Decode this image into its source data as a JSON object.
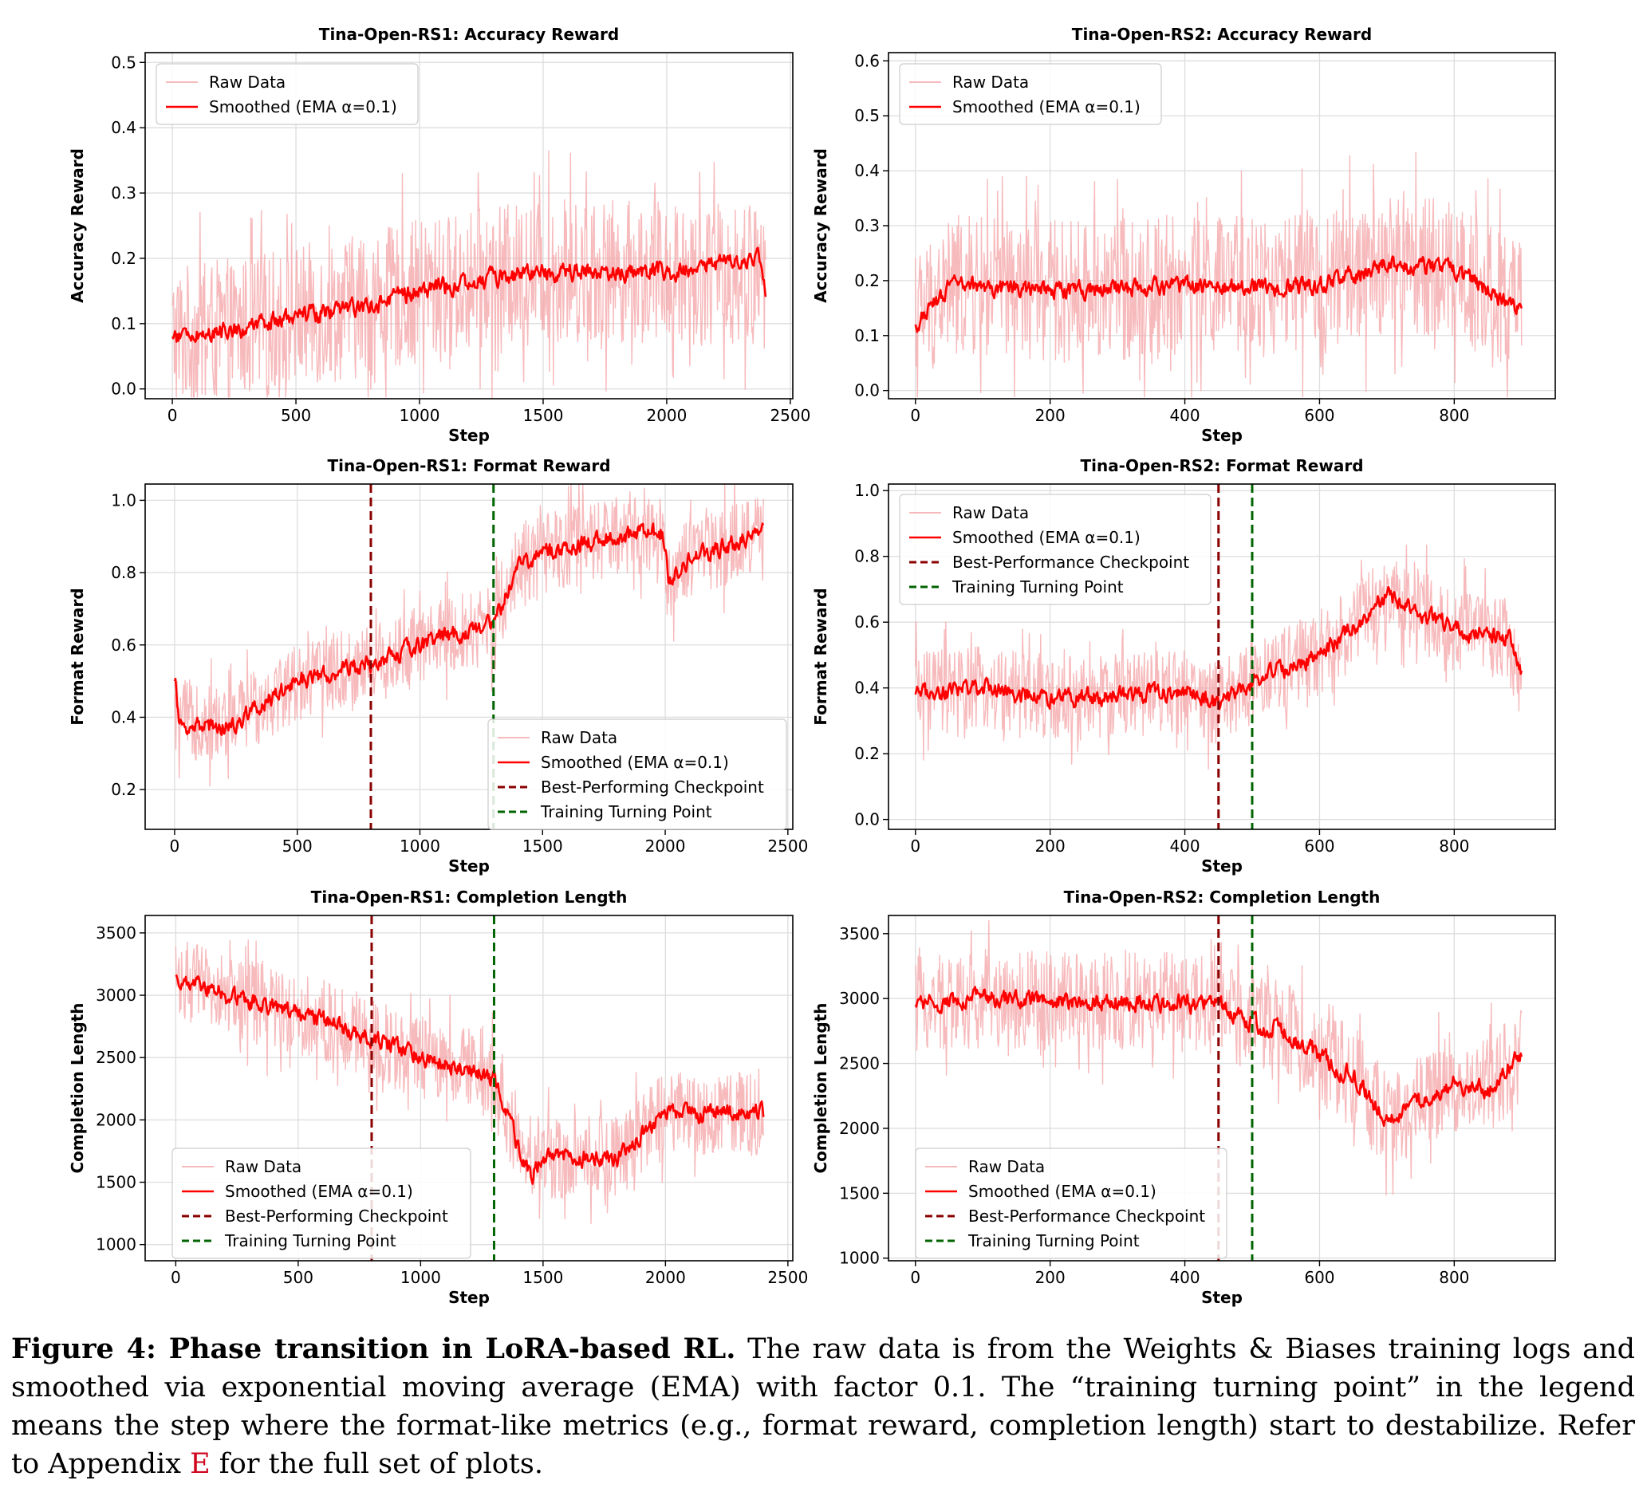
{
  "colors": {
    "raw": "#f4a3a6",
    "smoothed": "#ff0000",
    "best": "#8b0000",
    "turning": "#006400",
    "grid": "#dddddd",
    "ref": "#d0021b"
  },
  "chart_data": [
    {
      "type": "line",
      "title": "Tina-Open-RS1: Accuracy Reward",
      "xlabel": "Step",
      "ylabel": "Accuracy Reward",
      "xlim": [
        -110,
        2510
      ],
      "ylim": [
        -0.015,
        0.515
      ],
      "xticks": [
        0,
        500,
        1000,
        1500,
        2000,
        2500
      ],
      "yticks": [
        0.0,
        0.1,
        0.2,
        0.3,
        0.4,
        0.5
      ],
      "ytick_decimals": 1,
      "grid": true,
      "legend_position": "top-left",
      "legend": [
        "Raw Data",
        "Smoothed (EMA α=0.1)"
      ],
      "series": [
        {
          "name": "Raw Data",
          "role": "raw",
          "x_range": [
            0,
            2400
          ],
          "trend": [
            [
              0,
              0.08
            ],
            [
              250,
              0.09
            ],
            [
              500,
              0.11
            ],
            [
              800,
              0.13
            ],
            [
              1000,
              0.15
            ],
            [
              1300,
              0.17
            ],
            [
              1500,
              0.18
            ],
            [
              2000,
              0.18
            ],
            [
              2400,
              0.17
            ]
          ],
          "amplitude": 0.11
        },
        {
          "name": "Smoothed (EMA α=0.1)",
          "role": "smoothed",
          "x_range": [
            0,
            2400
          ],
          "trend": [
            [
              0,
              0.08
            ],
            [
              250,
              0.09
            ],
            [
              500,
              0.11
            ],
            [
              800,
              0.13
            ],
            [
              1000,
              0.15
            ],
            [
              1300,
              0.17
            ],
            [
              1500,
              0.18
            ],
            [
              2000,
              0.18
            ],
            [
              2380,
              0.2
            ],
            [
              2400,
              0.13
            ]
          ]
        }
      ]
    },
    {
      "type": "line",
      "title": "Tina-Open-RS2: Accuracy Reward",
      "xlabel": "Step",
      "ylabel": "Accuracy Reward",
      "xlim": [
        -40,
        950
      ],
      "ylim": [
        -0.015,
        0.615
      ],
      "xticks": [
        0,
        200,
        400,
        600,
        800
      ],
      "yticks": [
        0.0,
        0.1,
        0.2,
        0.3,
        0.4,
        0.5,
        0.6
      ],
      "ytick_decimals": 1,
      "grid": true,
      "legend_position": "top-left",
      "legend": [
        "Raw Data",
        "Smoothed (EMA α=0.1)"
      ],
      "series": [
        {
          "name": "Raw Data",
          "role": "raw",
          "x_range": [
            0,
            900
          ],
          "trend": [
            [
              0,
              0.13
            ],
            [
              50,
              0.19
            ],
            [
              200,
              0.18
            ],
            [
              400,
              0.19
            ],
            [
              600,
              0.19
            ],
            [
              700,
              0.23
            ],
            [
              800,
              0.22
            ],
            [
              900,
              0.14
            ]
          ],
          "amplitude": 0.13
        },
        {
          "name": "Smoothed (EMA α=0.1)",
          "role": "smoothed",
          "x_range": [
            0,
            900
          ],
          "trend": [
            [
              0,
              0.12
            ],
            [
              50,
              0.19
            ],
            [
              200,
              0.18
            ],
            [
              400,
              0.19
            ],
            [
              600,
              0.19
            ],
            [
              700,
              0.23
            ],
            [
              800,
              0.22
            ],
            [
              900,
              0.14
            ]
          ]
        }
      ]
    },
    {
      "type": "line",
      "title": "Tina-Open-RS1: Format Reward",
      "xlabel": "Step",
      "ylabel": "Format Reward",
      "xlim": [
        -120,
        2520
      ],
      "ylim": [
        0.09,
        1.045
      ],
      "xticks": [
        0,
        500,
        1000,
        1500,
        2000,
        2500
      ],
      "yticks": [
        0.2,
        0.4,
        0.6,
        0.8,
        1.0
      ],
      "ytick_decimals": 1,
      "grid": true,
      "legend_position": "lower-right",
      "legend": [
        "Raw Data",
        "Smoothed (EMA α=0.1)",
        "Best-Performing Checkpoint",
        "Training Turning Point"
      ],
      "vlines": [
        {
          "name": "Best-Performing Checkpoint",
          "role": "best",
          "x": 800
        },
        {
          "name": "Training Turning Point",
          "role": "turning",
          "x": 1300
        }
      ],
      "series": [
        {
          "name": "Raw Data",
          "role": "raw",
          "x_range": [
            0,
            2400
          ],
          "trend": [
            [
              0,
              0.4
            ],
            [
              200,
              0.38
            ],
            [
              500,
              0.5
            ],
            [
              800,
              0.55
            ],
            [
              1000,
              0.6
            ],
            [
              1300,
              0.66
            ],
            [
              1400,
              0.83
            ],
            [
              1600,
              0.87
            ],
            [
              1800,
              0.9
            ],
            [
              1990,
              0.91
            ],
            [
              2010,
              0.78
            ],
            [
              2100,
              0.84
            ],
            [
              2400,
              0.91
            ]
          ],
          "amplitude": 0.11
        },
        {
          "name": "Smoothed (EMA α=0.1)",
          "role": "smoothed",
          "x_range": [
            0,
            2400
          ],
          "trend": [
            [
              0,
              0.5
            ],
            [
              15,
              0.38
            ],
            [
              200,
              0.37
            ],
            [
              500,
              0.5
            ],
            [
              800,
              0.55
            ],
            [
              1000,
              0.6
            ],
            [
              1300,
              0.66
            ],
            [
              1400,
              0.83
            ],
            [
              1600,
              0.87
            ],
            [
              1800,
              0.9
            ],
            [
              1990,
              0.91
            ],
            [
              2010,
              0.77
            ],
            [
              2100,
              0.84
            ],
            [
              2400,
              0.91
            ]
          ]
        }
      ]
    },
    {
      "type": "line",
      "title": "Tina-Open-RS2: Format Reward",
      "xlabel": "Step",
      "ylabel": "Format Reward",
      "xlim": [
        -40,
        950
      ],
      "ylim": [
        -0.03,
        1.02
      ],
      "xticks": [
        0,
        200,
        400,
        600,
        800
      ],
      "yticks": [
        0.0,
        0.2,
        0.4,
        0.6,
        0.8,
        1.0
      ],
      "ytick_decimals": 1,
      "grid": true,
      "legend_position": "top-left",
      "legend": [
        "Raw Data",
        "Smoothed (EMA α=0.1)",
        "Best-Performance Checkpoint",
        "Training Turning Point"
      ],
      "vlines": [
        {
          "name": "Best-Performance Checkpoint",
          "role": "best",
          "x": 450
        },
        {
          "name": "Training Turning Point",
          "role": "turning",
          "x": 500
        }
      ],
      "series": [
        {
          "name": "Raw Data",
          "role": "raw",
          "x_range": [
            0,
            900
          ],
          "trend": [
            [
              0,
              0.38
            ],
            [
              100,
              0.4
            ],
            [
              200,
              0.36
            ],
            [
              300,
              0.38
            ],
            [
              400,
              0.39
            ],
            [
              450,
              0.35
            ],
            [
              500,
              0.42
            ],
            [
              600,
              0.5
            ],
            [
              700,
              0.68
            ],
            [
              800,
              0.58
            ],
            [
              880,
              0.55
            ],
            [
              900,
              0.43
            ]
          ],
          "amplitude": 0.13
        },
        {
          "name": "Smoothed (EMA α=0.1)",
          "role": "smoothed",
          "x_range": [
            0,
            900
          ],
          "trend": [
            [
              0,
              0.38
            ],
            [
              100,
              0.4
            ],
            [
              200,
              0.36
            ],
            [
              300,
              0.38
            ],
            [
              400,
              0.39
            ],
            [
              450,
              0.35
            ],
            [
              500,
              0.42
            ],
            [
              600,
              0.5
            ],
            [
              700,
              0.68
            ],
            [
              800,
              0.58
            ],
            [
              880,
              0.55
            ],
            [
              900,
              0.43
            ]
          ]
        }
      ]
    },
    {
      "type": "line",
      "title": "Tina-Open-RS1: Completion Length",
      "xlabel": "Step",
      "ylabel": "Completion Length",
      "xlim": [
        -125,
        2520
      ],
      "ylim": [
        870,
        3640
      ],
      "xticks": [
        0,
        500,
        1000,
        1500,
        2000,
        2500
      ],
      "yticks": [
        1000,
        1500,
        2000,
        2500,
        3000,
        3500
      ],
      "ytick_decimals": 0,
      "grid": true,
      "legend_position": "lower-left",
      "legend": [
        "Raw Data",
        "Smoothed (EMA α=0.1)",
        "Best-Performing Checkpoint",
        "Training Turning Point"
      ],
      "vlines": [
        {
          "name": "Best-Performing Checkpoint",
          "role": "best",
          "x": 800
        },
        {
          "name": "Training Turning Point",
          "role": "turning",
          "x": 1300
        }
      ],
      "series": [
        {
          "name": "Raw Data",
          "role": "raw",
          "x_range": [
            0,
            2400
          ],
          "trend": [
            [
              0,
              3150
            ],
            [
              200,
              3000
            ],
            [
              400,
              2900
            ],
            [
              600,
              2800
            ],
            [
              800,
              2650
            ],
            [
              1000,
              2500
            ],
            [
              1200,
              2400
            ],
            [
              1300,
              2300
            ],
            [
              1400,
              1750
            ],
            [
              1500,
              1700
            ],
            [
              1800,
              1700
            ],
            [
              2000,
              2050
            ],
            [
              2400,
              2050
            ]
          ],
          "amplitude": 330
        },
        {
          "name": "Smoothed (EMA α=0.1)",
          "role": "smoothed",
          "x_range": [
            0,
            2400
          ],
          "trend": [
            [
              0,
              3150
            ],
            [
              200,
              3000
            ],
            [
              400,
              2900
            ],
            [
              600,
              2800
            ],
            [
              800,
              2650
            ],
            [
              1000,
              2500
            ],
            [
              1200,
              2400
            ],
            [
              1300,
              2300
            ],
            [
              1400,
              1750
            ],
            [
              1450,
              1550
            ],
            [
              1500,
              1700
            ],
            [
              1800,
              1700
            ],
            [
              2000,
              2050
            ],
            [
              2400,
              2050
            ]
          ]
        }
      ]
    },
    {
      "type": "line",
      "title": "Tina-Open-RS2: Completion Length",
      "xlabel": "Step",
      "ylabel": "Completion Length",
      "xlim": [
        -40,
        950
      ],
      "ylim": [
        980,
        3640
      ],
      "xticks": [
        0,
        200,
        400,
        600,
        800
      ],
      "yticks": [
        1000,
        1500,
        2000,
        2500,
        3000,
        3500
      ],
      "ytick_decimals": 0,
      "grid": true,
      "legend_position": "lower-left",
      "legend": [
        "Raw Data",
        "Smoothed (EMA α=0.1)",
        "Best-Performance Checkpoint",
        "Training Turning Point"
      ],
      "vlines": [
        {
          "name": "Best-Performance Checkpoint",
          "role": "best",
          "x": 450
        },
        {
          "name": "Training Turning Point",
          "role": "turning",
          "x": 500
        }
      ],
      "series": [
        {
          "name": "Raw Data",
          "role": "raw",
          "x_range": [
            0,
            900
          ],
          "trend": [
            [
              0,
              2950
            ],
            [
              100,
              3000
            ],
            [
              200,
              2980
            ],
            [
              300,
              2980
            ],
            [
              450,
              2950
            ],
            [
              500,
              2800
            ],
            [
              550,
              2750
            ],
            [
              600,
              2550
            ],
            [
              650,
              2400
            ],
            [
              700,
              2050
            ],
            [
              750,
              2200
            ],
            [
              800,
              2350
            ],
            [
              850,
              2300
            ],
            [
              900,
              2600
            ]
          ],
          "amplitude": 380
        },
        {
          "name": "Smoothed (EMA α=0.1)",
          "role": "smoothed",
          "x_range": [
            0,
            900
          ],
          "trend": [
            [
              0,
              2950
            ],
            [
              100,
              3000
            ],
            [
              200,
              2980
            ],
            [
              300,
              2980
            ],
            [
              450,
              2950
            ],
            [
              500,
              2800
            ],
            [
              550,
              2750
            ],
            [
              600,
              2550
            ],
            [
              650,
              2400
            ],
            [
              700,
              2050
            ],
            [
              750,
              2200
            ],
            [
              800,
              2350
            ],
            [
              850,
              2300
            ],
            [
              900,
              2600
            ]
          ]
        }
      ]
    }
  ],
  "caption": {
    "label": "Figure 4: Phase transition in LoRA-based RL.",
    "text_before_ref": " The raw data is from the Weights & Biases training logs and smoothed via exponential moving average (EMA) with factor 0.1. The “training turning point” in the legend means the step where the format-like metrics (e.g., format reward, completion length) start to destabilize. Refer to Appendix ",
    "ref": "E",
    "text_after_ref": " for the full set of plots."
  }
}
